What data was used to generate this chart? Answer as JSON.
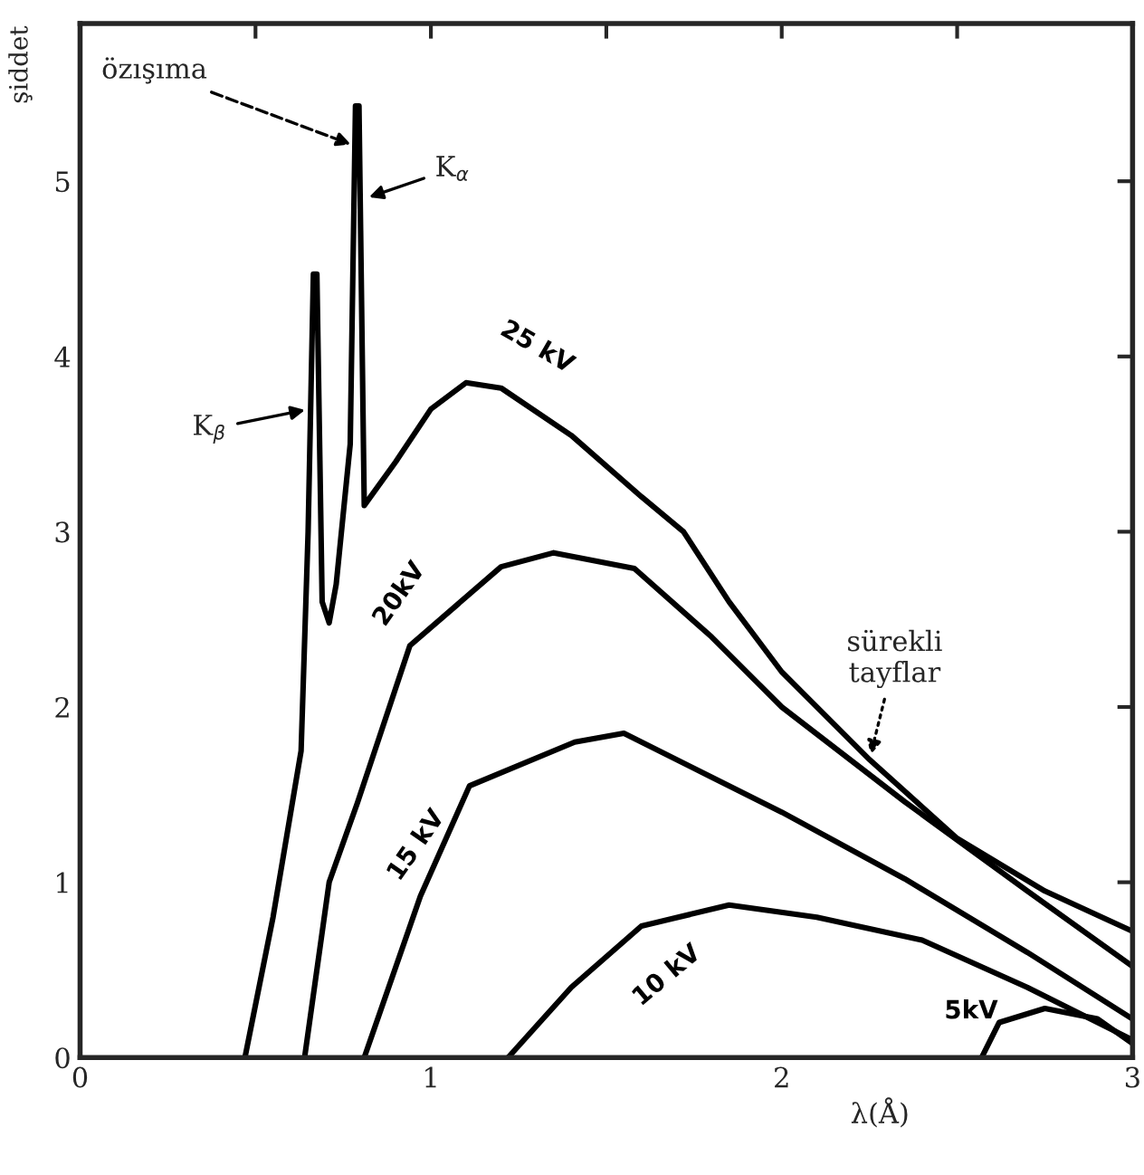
{
  "chart_data": {
    "type": "line",
    "xlabel": "λ(Å)",
    "ylabel": "şiddet",
    "xlim": [
      0,
      3
    ],
    "ylim": [
      0,
      5.9
    ],
    "xticks": [
      0,
      {
        "value": 0.5,
        "label": null
      },
      1,
      {
        "value": 1.5,
        "label": null
      },
      2,
      {
        "value": 2.5,
        "label": null
      },
      3
    ],
    "yticks": [
      0,
      1,
      2,
      3,
      4,
      5
    ],
    "grid": false,
    "legend": false,
    "marker": "none",
    "line_style": "solid",
    "series": [
      {
        "name": "25 kV",
        "color": "#000000",
        "x": [
          0.47,
          0.55,
          0.63,
          0.65,
          0.665,
          0.675,
          0.69,
          0.71,
          0.73,
          0.77,
          0.785,
          0.795,
          0.81,
          0.9,
          1.0,
          1.1,
          1.2,
          1.4,
          1.6,
          1.72,
          1.85,
          2.0,
          2.25,
          2.5,
          2.75,
          3.0
        ],
        "values": [
          0,
          0.8,
          1.75,
          3.0,
          4.47,
          4.47,
          2.6,
          2.48,
          2.7,
          3.5,
          5.43,
          5.43,
          3.15,
          3.4,
          3.7,
          3.85,
          3.82,
          3.55,
          3.2,
          3.0,
          2.6,
          2.2,
          1.7,
          1.25,
          0.95,
          0.72
        ]
      },
      {
        "name": "20kV",
        "color": "#000000",
        "x": [
          0.64,
          0.71,
          0.79,
          0.94,
          1.2,
          1.35,
          1.58,
          1.8,
          2.0,
          2.35,
          2.7,
          3.0
        ],
        "values": [
          0,
          1.0,
          1.45,
          2.35,
          2.8,
          2.88,
          2.79,
          2.4,
          2.0,
          1.46,
          0.95,
          0.52
        ]
      },
      {
        "name": "15 kV",
        "color": "#000000",
        "x": [
          0.81,
          0.97,
          1.11,
          1.41,
          1.55,
          1.8,
          2.0,
          2.35,
          2.7,
          3.0
        ],
        "values": [
          0,
          0.92,
          1.55,
          1.8,
          1.85,
          1.6,
          1.4,
          1.02,
          0.6,
          0.22
        ]
      },
      {
        "name": "10 kV",
        "color": "#000000",
        "x": [
          1.22,
          1.4,
          1.6,
          1.85,
          2.1,
          2.4,
          2.7,
          3.0
        ],
        "values": [
          0,
          0.4,
          0.75,
          0.87,
          0.8,
          0.67,
          0.4,
          0.1
        ]
      },
      {
        "name": "5kV",
        "color": "#000000",
        "x": [
          2.57,
          2.62,
          2.75,
          2.9,
          3.0
        ],
        "values": [
          0,
          0.2,
          0.28,
          0.22,
          0.08
        ]
      }
    ],
    "annotations": [
      {
        "text": "özışıma",
        "x": 0.785,
        "y": 5.2
      },
      {
        "text": "K$_{β}$",
        "x": 0.655,
        "y": 3.7
      },
      {
        "text": "K$_{α}$",
        "x": 0.81,
        "y": 4.9
      },
      {
        "text": "sürekli\ntayflar",
        "x": 2.25,
        "y": 1.7
      }
    ]
  }
}
